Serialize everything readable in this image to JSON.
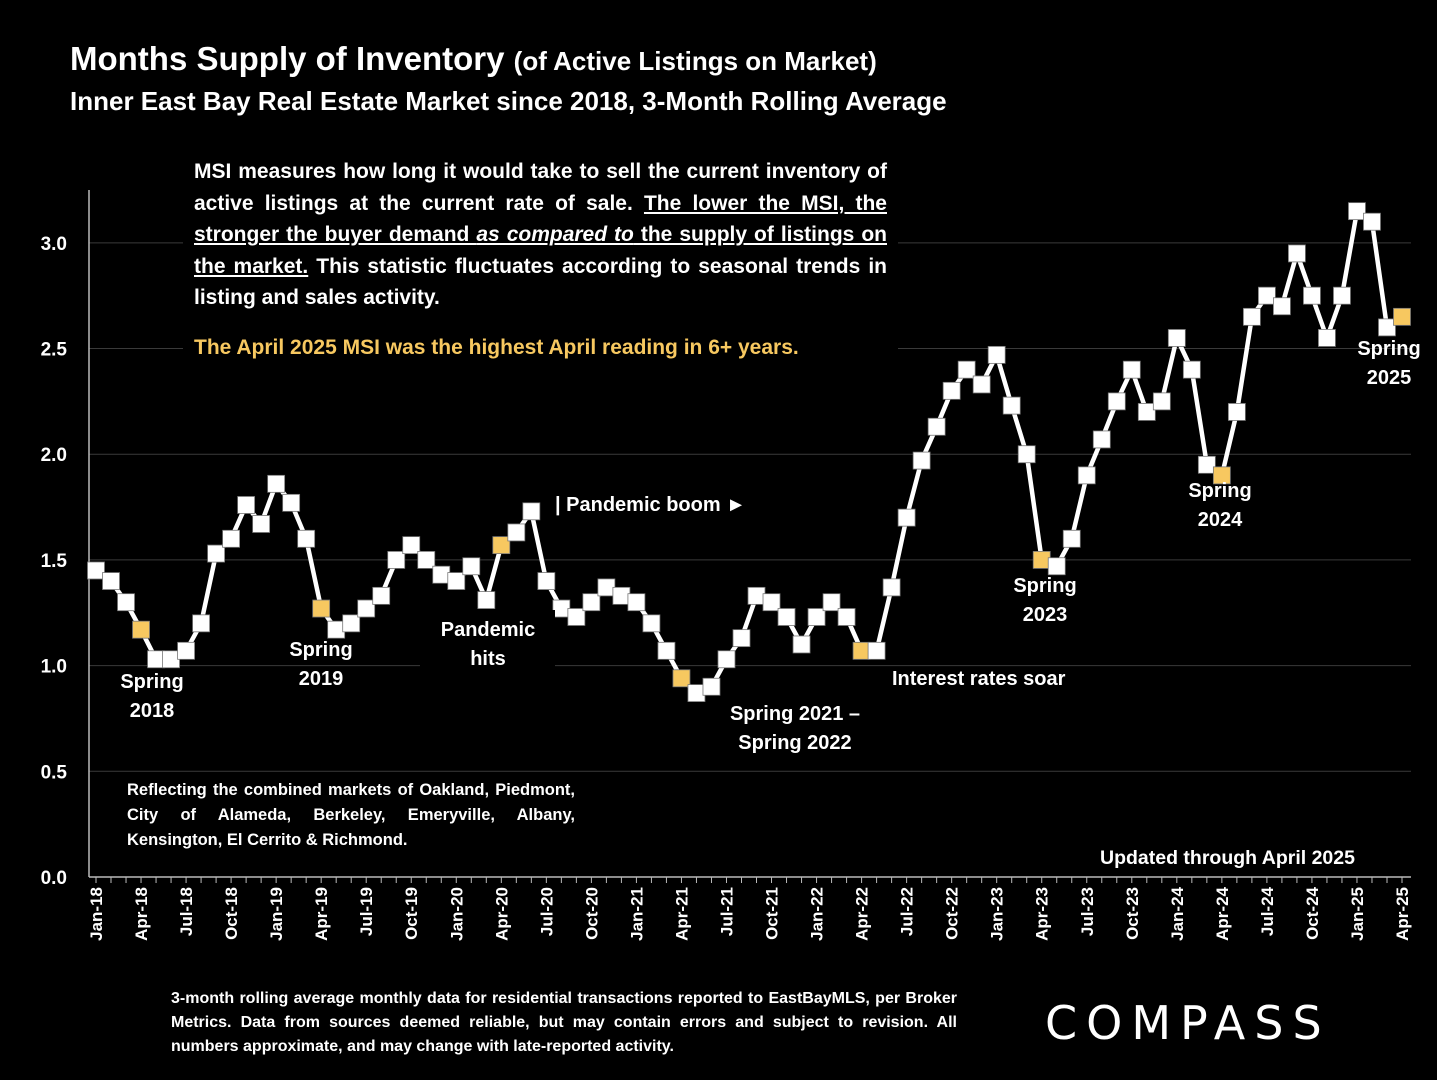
{
  "header": {
    "title_main": "Months Supply of Inventory",
    "title_paren": "(of Active Listings on Market)",
    "subtitle": "Inner East Bay Real Estate Market since 2018, 3-Month Rolling Average"
  },
  "description": {
    "p1_a": "MSI measures how long it would take to sell the current inventory of active listings at the current rate of sale. ",
    "p1_b": "The lower the MSI, the stronger the buyer demand ",
    "p1_c": "as compared to",
    "p1_d": " the supply of listings on the market.",
    "p1_e": " This statistic fluctuates according to seasonal trends in listing and sales activity.",
    "highlight": "The April 2025 MSI was the highest April reading in 6+ years."
  },
  "regions_note": "Reflecting the combined markets of Oakland, Piedmont, City of Alameda, Berkeley, Emeryville, Albany, Kensington, El Cerrito & Richmond.",
  "updated_note": "Updated through April 2025",
  "footnote": "3-month rolling average monthly data for residential transactions reported to EastBayMLS, per Broker Metrics. Data from sources deemed reliable, but may contain errors and subject to revision. All numbers approximate, and may change with late-reported activity.",
  "logo_text": "COMPASS",
  "colors": {
    "background": "#000000",
    "line": "#ffffff",
    "marker": "#ffffff",
    "highlight_marker": "#f7c860",
    "highlight_text": "#f7c860",
    "grid": "#3a3a3a"
  },
  "chart_data": {
    "type": "line",
    "ylim": [
      0,
      3.25
    ],
    "yticks": [
      "0.0",
      "0.5",
      "1.0",
      "1.5",
      "2.0",
      "2.5",
      "3.0"
    ],
    "xtick_labels": [
      "Jan-18",
      "Apr-18",
      "Jul-18",
      "Oct-18",
      "Jan-19",
      "Apr-19",
      "Jul-19",
      "Oct-19",
      "Jan-20",
      "Apr-20",
      "Jul-20",
      "Oct-20",
      "Jan-21",
      "Apr-21",
      "Jul-21",
      "Oct-21",
      "Jan-22",
      "Apr-22",
      "Jul-22",
      "Oct-22",
      "Jan-23",
      "Apr-23",
      "Jul-23",
      "Oct-23",
      "Jan-24",
      "Apr-24",
      "Jul-24",
      "Oct-24",
      "Jan-25",
      "Apr-25"
    ],
    "grid": true,
    "series": [
      {
        "start": "2018-01",
        "values": [
          1.45,
          1.4,
          1.3,
          1.17,
          1.03,
          1.03,
          1.07,
          1.2,
          1.53,
          1.6,
          1.76,
          1.67,
          1.86,
          1.77,
          1.6,
          1.27,
          1.17,
          1.2,
          1.27,
          1.33,
          1.5,
          1.57,
          1.5,
          1.43,
          1.4,
          1.47,
          1.31,
          1.57,
          1.63,
          1.73,
          1.4,
          1.27,
          1.23,
          1.3,
          1.37,
          1.33,
          1.3,
          1.2,
          1.07,
          0.94,
          0.87,
          0.9,
          1.03,
          1.13,
          1.33,
          1.3,
          1.23,
          1.1,
          1.23,
          1.3,
          1.23,
          1.07,
          1.07,
          1.37,
          1.7,
          1.97,
          2.13,
          2.3,
          2.4,
          2.33,
          2.47,
          2.23,
          2.0,
          1.5,
          1.47,
          1.6,
          1.9,
          2.07,
          2.25,
          2.4,
          2.2,
          2.25,
          2.55,
          2.4,
          1.95,
          1.9,
          2.2,
          2.65,
          2.75,
          2.7,
          2.95,
          2.75,
          2.55,
          2.75,
          3.15,
          3.1,
          2.6,
          2.65
        ],
        "highlighted": [
          "Apr-18",
          "Apr-19",
          "Apr-20",
          "Apr-21",
          "Apr-22",
          "Apr-23",
          "Apr-24",
          "Apr-25"
        ]
      }
    ],
    "annotations": [
      {
        "lines": [
          "Spring",
          "2018"
        ]
      },
      {
        "lines": [
          "Spring",
          "2019"
        ]
      },
      {
        "lines": [
          "Pandemic",
          "hits"
        ]
      },
      {
        "lines": [
          "| Pandemic boom ►"
        ]
      },
      {
        "lines": [
          "Spring 2021 –",
          "Spring 2022"
        ]
      },
      {
        "lines": [
          "Interest rates soar"
        ]
      },
      {
        "lines": [
          "Spring",
          "2023"
        ]
      },
      {
        "lines": [
          "Spring",
          "2024"
        ]
      },
      {
        "lines": [
          "Spring",
          "2025"
        ]
      }
    ]
  }
}
